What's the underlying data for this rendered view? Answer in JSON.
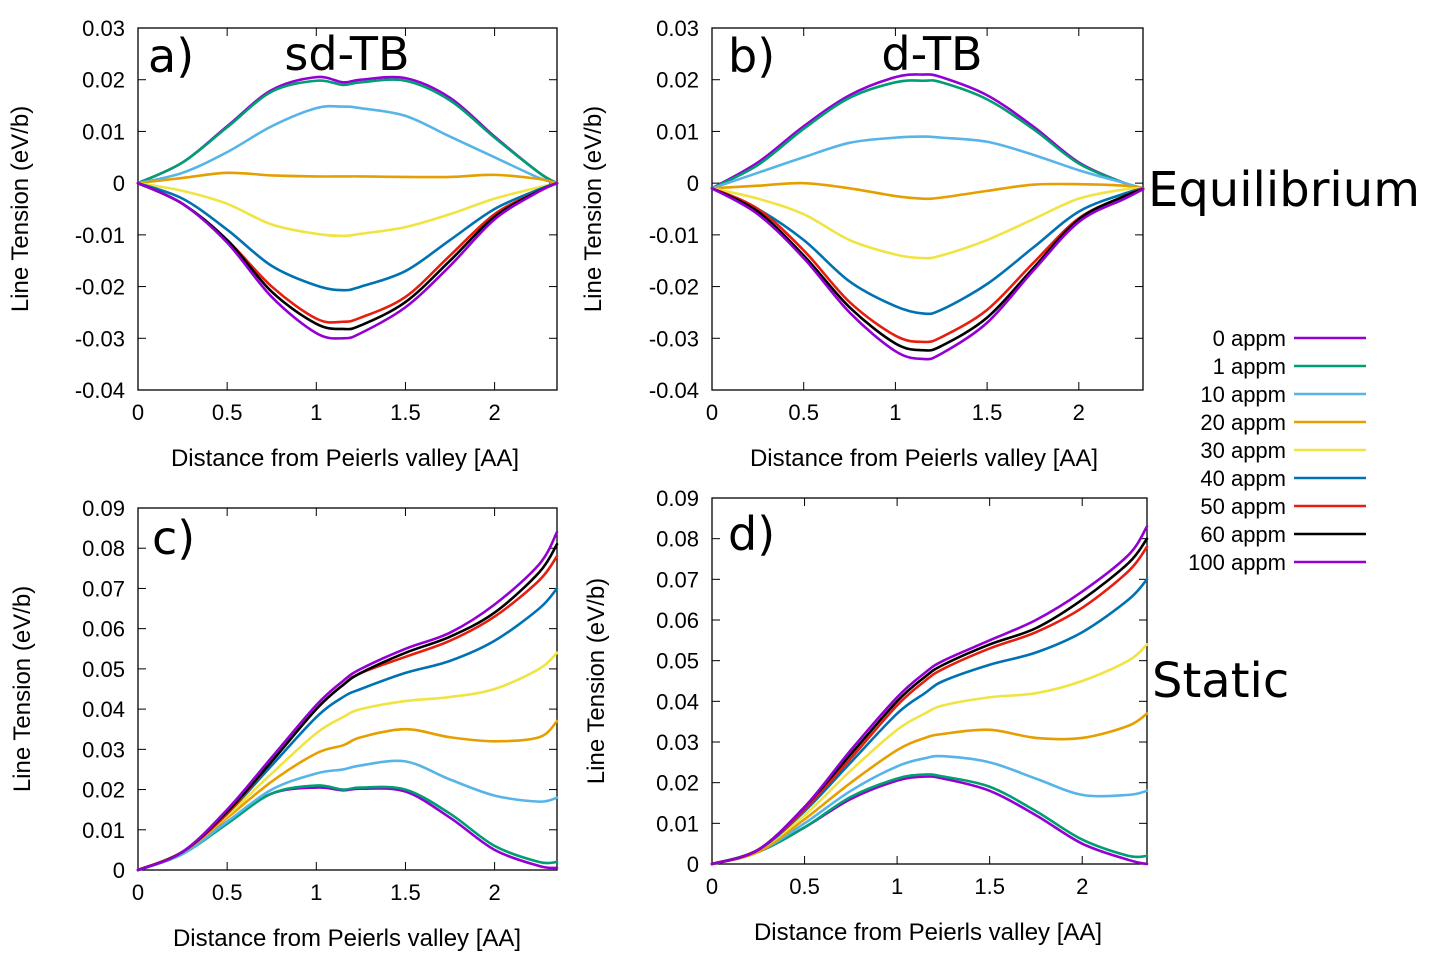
{
  "figure": {
    "row_labels": [
      "Equilibrium",
      "Static"
    ],
    "legend": [
      {
        "label": "0 appm",
        "color": "#9400d3"
      },
      {
        "label": "1 appm",
        "color": "#009e73"
      },
      {
        "label": "10 appm",
        "color": "#56b4e9"
      },
      {
        "label": "20 appm",
        "color": "#e69f00"
      },
      {
        "label": "30 appm",
        "color": "#f0e442"
      },
      {
        "label": "40 appm",
        "color": "#0072b2"
      },
      {
        "label": "50 appm",
        "color": "#e51e10"
      },
      {
        "label": "60 appm",
        "color": "#000000"
      },
      {
        "label": "100 appm",
        "color": "#9400d3"
      }
    ]
  },
  "chart_data": [
    {
      "type": "line",
      "panel": "a)",
      "title": "sd-TB",
      "xlabel": "Distance from Peierls valley [AA]",
      "ylabel": "Line Tension (eV/b)",
      "xlim": [
        0,
        2.35
      ],
      "ylim": [
        -0.04,
        0.03
      ],
      "xticks": [
        0,
        0.5,
        1,
        1.5,
        2
      ],
      "xtick_labels": [
        "0",
        "0.5",
        "1",
        "1.5",
        "2"
      ],
      "yticks": [
        -0.04,
        -0.03,
        -0.02,
        -0.01,
        0,
        0.01,
        0.02,
        0.03
      ],
      "ytick_labels": [
        "-0.04",
        "-0.03",
        "-0.02",
        "-0.01",
        "0",
        "0.01",
        "0.02",
        "0.03"
      ],
      "x": [
        0,
        0.25,
        0.5,
        0.75,
        1.0,
        1.15,
        1.25,
        1.5,
        1.75,
        2.0,
        2.25,
        2.35
      ],
      "series": [
        {
          "name": "0 appm",
          "values": [
            0,
            0.004,
            0.011,
            0.018,
            0.0205,
            0.0195,
            0.02,
            0.0203,
            0.0165,
            0.009,
            0.002,
            0
          ]
        },
        {
          "name": "1 appm",
          "values": [
            0,
            0.004,
            0.0108,
            0.0177,
            0.0198,
            0.019,
            0.0195,
            0.0198,
            0.016,
            0.0088,
            0.002,
            0
          ]
        },
        {
          "name": "10 appm",
          "values": [
            0,
            0.002,
            0.006,
            0.011,
            0.0145,
            0.0148,
            0.0145,
            0.013,
            0.009,
            0.005,
            0.001,
            0
          ]
        },
        {
          "name": "20 appm",
          "values": [
            0,
            0.001,
            0.002,
            0.0015,
            0.0013,
            0.0013,
            0.0013,
            0.0012,
            0.0012,
            0.0016,
            0.0008,
            0
          ]
        },
        {
          "name": "30 appm",
          "values": [
            0,
            -0.0015,
            -0.004,
            -0.008,
            -0.0098,
            -0.0102,
            -0.0098,
            -0.0085,
            -0.006,
            -0.003,
            -0.0008,
            0
          ]
        },
        {
          "name": "40 appm",
          "values": [
            0,
            -0.003,
            -0.009,
            -0.016,
            -0.0198,
            -0.0207,
            -0.02,
            -0.017,
            -0.011,
            -0.005,
            -0.0012,
            0
          ]
        },
        {
          "name": "50 appm",
          "values": [
            0,
            -0.004,
            -0.011,
            -0.02,
            -0.0262,
            -0.0268,
            -0.026,
            -0.022,
            -0.014,
            -0.006,
            -0.0015,
            0
          ]
        },
        {
          "name": "60 appm",
          "values": [
            0,
            -0.004,
            -0.011,
            -0.021,
            -0.0272,
            -0.0282,
            -0.0275,
            -0.023,
            -0.015,
            -0.0065,
            -0.0015,
            0
          ]
        },
        {
          "name": "100 appm",
          "values": [
            0,
            -0.004,
            -0.0115,
            -0.022,
            -0.029,
            -0.03,
            -0.029,
            -0.024,
            -0.016,
            -0.007,
            -0.0016,
            0
          ]
        }
      ]
    },
    {
      "type": "line",
      "panel": "b)",
      "title": "d-TB",
      "xlabel": "Distance from Peierls valley [AA]",
      "ylabel": "Line Tension (eV/b)",
      "xlim": [
        0,
        2.35
      ],
      "ylim": [
        -0.04,
        0.03
      ],
      "xticks": [
        0,
        0.5,
        1,
        1.5,
        2
      ],
      "xtick_labels": [
        "0",
        "0.5",
        "1",
        "1.5",
        "2"
      ],
      "yticks": [
        -0.04,
        -0.03,
        -0.02,
        -0.01,
        0,
        0.01,
        0.02,
        0.03
      ],
      "ytick_labels": [
        "-0.04",
        "-0.03",
        "-0.02",
        "-0.01",
        "0",
        "0.01",
        "0.02",
        "0.03"
      ],
      "x": [
        0,
        0.25,
        0.5,
        0.75,
        1.0,
        1.15,
        1.25,
        1.5,
        1.75,
        2.0,
        2.25,
        2.35
      ],
      "series": [
        {
          "name": "0 appm",
          "values": [
            -0.001,
            0.004,
            0.011,
            0.017,
            0.0205,
            0.021,
            0.0205,
            0.017,
            0.011,
            0.004,
            0.0,
            -0.001
          ]
        },
        {
          "name": "1 appm",
          "values": [
            -0.001,
            0.0035,
            0.0105,
            0.0165,
            0.0195,
            0.0198,
            0.0195,
            0.0162,
            0.0105,
            0.0038,
            0.0,
            -0.001
          ]
        },
        {
          "name": "10 appm",
          "values": [
            -0.001,
            0.002,
            0.005,
            0.0078,
            0.0088,
            0.009,
            0.0088,
            0.008,
            0.0055,
            0.0025,
            0.0,
            -0.001
          ]
        },
        {
          "name": "20 appm",
          "values": [
            -0.001,
            -0.0005,
            0.0,
            -0.001,
            -0.0025,
            -0.003,
            -0.0028,
            -0.0015,
            -0.0003,
            -0.0002,
            -0.0005,
            -0.001
          ]
        },
        {
          "name": "30 appm",
          "values": [
            -0.001,
            -0.003,
            -0.006,
            -0.011,
            -0.0138,
            -0.0145,
            -0.014,
            -0.011,
            -0.007,
            -0.003,
            -0.0012,
            -0.001
          ]
        },
        {
          "name": "40 appm",
          "values": [
            -0.001,
            -0.005,
            -0.011,
            -0.019,
            -0.0238,
            -0.0252,
            -0.0245,
            -0.0195,
            -0.0125,
            -0.0055,
            -0.002,
            -0.001
          ]
        },
        {
          "name": "50 appm",
          "values": [
            -0.001,
            -0.005,
            -0.013,
            -0.023,
            -0.0295,
            -0.0307,
            -0.0298,
            -0.0245,
            -0.0155,
            -0.0068,
            -0.0025,
            -0.001
          ]
        },
        {
          "name": "60 appm",
          "values": [
            -0.001,
            -0.0055,
            -0.014,
            -0.024,
            -0.031,
            -0.0323,
            -0.0315,
            -0.026,
            -0.0165,
            -0.007,
            -0.0025,
            -0.0012
          ]
        },
        {
          "name": "100 appm",
          "values": [
            -0.001,
            -0.006,
            -0.0145,
            -0.025,
            -0.0325,
            -0.034,
            -0.033,
            -0.027,
            -0.017,
            -0.0075,
            -0.003,
            -0.0012
          ]
        }
      ]
    },
    {
      "type": "line",
      "panel": "c)",
      "title": "",
      "xlabel": "Distance from Peierls valley [AA]",
      "ylabel": "Line Tension (eV/b)",
      "xlim": [
        0,
        2.35
      ],
      "ylim": [
        0,
        0.09
      ],
      "xticks": [
        0,
        0.5,
        1,
        1.5,
        2
      ],
      "xtick_labels": [
        "0",
        "0.5",
        "1",
        "1.5",
        "2"
      ],
      "yticks": [
        0,
        0.01,
        0.02,
        0.03,
        0.04,
        0.05,
        0.06,
        0.07,
        0.08,
        0.09
      ],
      "ytick_labels": [
        "0",
        "0.01",
        "0.02",
        "0.03",
        "0.04",
        "0.05",
        "0.06",
        "0.07",
        "0.08",
        "0.09"
      ],
      "x": [
        0,
        0.25,
        0.5,
        0.75,
        1.0,
        1.15,
        1.25,
        1.5,
        1.75,
        2.0,
        2.25,
        2.35
      ],
      "series": [
        {
          "name": "0 appm",
          "values": [
            0,
            0.004,
            0.012,
            0.019,
            0.0205,
            0.0198,
            0.0202,
            0.0195,
            0.013,
            0.005,
            0.001,
            0.0005
          ]
        },
        {
          "name": "1 appm",
          "values": [
            0,
            0.004,
            0.0115,
            0.019,
            0.021,
            0.02,
            0.0205,
            0.02,
            0.014,
            0.006,
            0.002,
            0.002
          ]
        },
        {
          "name": "10 appm",
          "values": [
            0,
            0.004,
            0.012,
            0.02,
            0.024,
            0.025,
            0.026,
            0.027,
            0.0225,
            0.0185,
            0.017,
            0.018
          ]
        },
        {
          "name": "20 appm",
          "values": [
            0,
            0.0045,
            0.013,
            0.022,
            0.029,
            0.031,
            0.033,
            0.035,
            0.033,
            0.032,
            0.033,
            0.037
          ]
        },
        {
          "name": "30 appm",
          "values": [
            0,
            0.0045,
            0.0135,
            0.024,
            0.034,
            0.038,
            0.04,
            0.042,
            0.043,
            0.045,
            0.05,
            0.054
          ]
        },
        {
          "name": "40 appm",
          "values": [
            0,
            0.0045,
            0.014,
            0.026,
            0.038,
            0.043,
            0.045,
            0.049,
            0.052,
            0.057,
            0.065,
            0.07
          ]
        },
        {
          "name": "50 appm",
          "values": [
            0,
            0.0045,
            0.014,
            0.027,
            0.04,
            0.046,
            0.049,
            0.053,
            0.057,
            0.063,
            0.072,
            0.078
          ]
        },
        {
          "name": "60 appm",
          "values": [
            0,
            0.0045,
            0.0145,
            0.027,
            0.04,
            0.046,
            0.049,
            0.054,
            0.058,
            0.064,
            0.074,
            0.081
          ]
        },
        {
          "name": "100 appm",
          "values": [
            0,
            0.0045,
            0.015,
            0.028,
            0.041,
            0.047,
            0.05,
            0.055,
            0.059,
            0.066,
            0.076,
            0.084
          ]
        }
      ]
    },
    {
      "type": "line",
      "panel": "d)",
      "title": "",
      "xlabel": "Distance from Peierls valley [AA]",
      "ylabel": "Line Tension (eV/b)",
      "xlim": [
        0,
        2.35
      ],
      "ylim": [
        0,
        0.09
      ],
      "xticks": [
        0,
        0.5,
        1,
        1.5,
        2
      ],
      "xtick_labels": [
        "0",
        "0.5",
        "1",
        "1.5",
        "2"
      ],
      "yticks": [
        0,
        0.01,
        0.02,
        0.03,
        0.04,
        0.05,
        0.06,
        0.07,
        0.08,
        0.09
      ],
      "ytick_labels": [
        "0",
        "0.01",
        "0.02",
        "0.03",
        "0.04",
        "0.05",
        "0.06",
        "0.07",
        "0.08",
        "0.09"
      ],
      "x": [
        0,
        0.25,
        0.5,
        0.75,
        1.0,
        1.15,
        1.25,
        1.5,
        1.75,
        2.0,
        2.25,
        2.35
      ],
      "series": [
        {
          "name": "0 appm",
          "values": [
            0,
            0.003,
            0.009,
            0.016,
            0.0205,
            0.0215,
            0.021,
            0.018,
            0.012,
            0.005,
            0.001,
            0.0
          ]
        },
        {
          "name": "1 appm",
          "values": [
            0,
            0.003,
            0.009,
            0.0165,
            0.021,
            0.022,
            0.0215,
            0.019,
            0.013,
            0.006,
            0.002,
            0.002
          ]
        },
        {
          "name": "10 appm",
          "values": [
            0,
            0.003,
            0.01,
            0.018,
            0.024,
            0.026,
            0.0265,
            0.025,
            0.021,
            0.017,
            0.017,
            0.018
          ]
        },
        {
          "name": "20 appm",
          "values": [
            0,
            0.003,
            0.011,
            0.02,
            0.028,
            0.031,
            0.032,
            0.033,
            0.031,
            0.031,
            0.034,
            0.037
          ]
        },
        {
          "name": "30 appm",
          "values": [
            0,
            0.0035,
            0.012,
            0.023,
            0.033,
            0.037,
            0.039,
            0.041,
            0.042,
            0.045,
            0.05,
            0.054
          ]
        },
        {
          "name": "40 appm",
          "values": [
            0,
            0.0035,
            0.013,
            0.025,
            0.037,
            0.042,
            0.045,
            0.049,
            0.052,
            0.057,
            0.065,
            0.07
          ]
        },
        {
          "name": "50 appm",
          "values": [
            0,
            0.0035,
            0.0135,
            0.026,
            0.039,
            0.045,
            0.048,
            0.053,
            0.057,
            0.063,
            0.072,
            0.078
          ]
        },
        {
          "name": "60 appm",
          "values": [
            0,
            0.0035,
            0.014,
            0.027,
            0.04,
            0.046,
            0.049,
            0.054,
            0.058,
            0.065,
            0.074,
            0.08
          ]
        },
        {
          "name": "100 appm",
          "values": [
            0,
            0.0035,
            0.014,
            0.028,
            0.041,
            0.047,
            0.05,
            0.055,
            0.06,
            0.067,
            0.076,
            0.083
          ]
        }
      ]
    }
  ]
}
